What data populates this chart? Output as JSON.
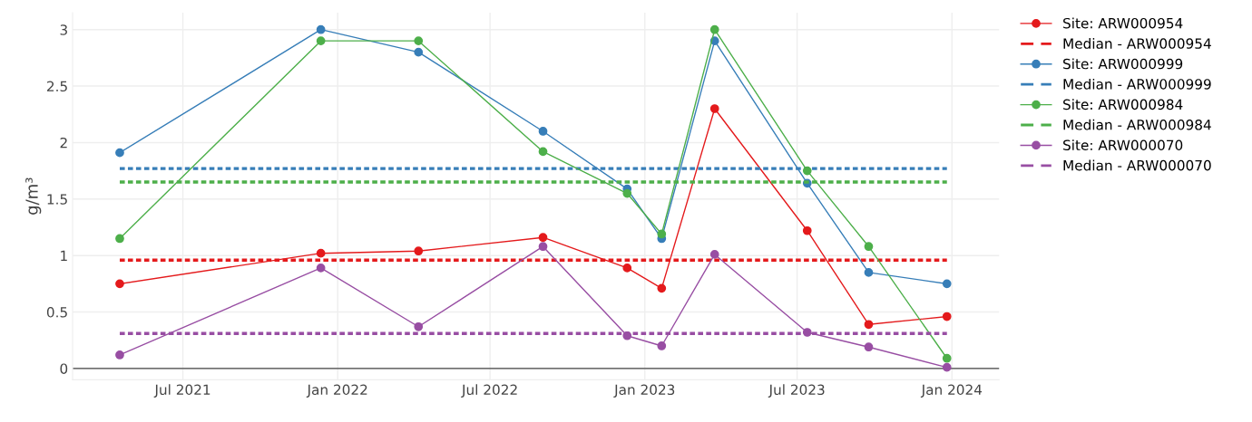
{
  "chart_data": {
    "type": "line",
    "ylabel": "g/m³",
    "marker": "circle",
    "line_style": "solid",
    "grid": true,
    "legend": "top right",
    "xlim": [
      "2021-02-20",
      "2024-02-26"
    ],
    "ylim": [
      -0.1,
      3.15
    ],
    "xticks": [
      {
        "value": "2021-07-01",
        "label": "Jul 2021"
      },
      {
        "value": "2022-01-01",
        "label": "Jan 2022"
      },
      {
        "value": "2022-07-01",
        "label": "Jul 2022"
      },
      {
        "value": "2023-01-01",
        "label": "Jan 2023"
      },
      {
        "value": "2023-07-01",
        "label": "Jul 2023"
      },
      {
        "value": "2024-01-01",
        "label": "Jan 2024"
      }
    ],
    "yticks": [
      0,
      0.5,
      1,
      1.5,
      2,
      2.5,
      3
    ],
    "ref_lines": [
      {
        "axis": "y",
        "value": 0,
        "label": null,
        "color": "#444444"
      }
    ],
    "x": [
      "2021-04-17",
      "2021-12-12",
      "2022-04-07",
      "2022-09-02",
      "2022-12-11",
      "2023-01-21",
      "2023-03-25",
      "2023-07-13",
      "2023-09-24",
      "2023-12-26"
    ],
    "series": [
      {
        "name": "Site: ARW000954",
        "color": "#e41a1c",
        "values": [
          0.75,
          1.02,
          1.04,
          1.16,
          0.89,
          0.71,
          2.3,
          1.22,
          0.39,
          0.46
        ]
      },
      {
        "name": "Median - ARW000954",
        "color": "#e41a1c",
        "line_style": "dashed",
        "marker": "none",
        "x": [
          "2021-04-17",
          "2023-12-26"
        ],
        "values": [
          0.96,
          0.96
        ]
      },
      {
        "name": "Site: ARW000999",
        "color": "#377eb8",
        "values": [
          1.91,
          3.0,
          2.8,
          2.1,
          1.59,
          1.15,
          2.9,
          1.64,
          0.85,
          0.75
        ]
      },
      {
        "name": "Median - ARW000999",
        "color": "#377eb8",
        "line_style": "dashed",
        "marker": "none",
        "x": [
          "2021-04-17",
          "2023-12-26"
        ],
        "values": [
          1.77,
          1.77
        ]
      },
      {
        "name": "Site: ARW000984",
        "color": "#4daf4a",
        "values": [
          1.15,
          2.9,
          2.9,
          1.92,
          1.55,
          1.19,
          3.0,
          1.75,
          1.08,
          0.09
        ]
      },
      {
        "name": "Median - ARW000984",
        "color": "#4daf4a",
        "line_style": "dashed",
        "marker": "none",
        "x": [
          "2021-04-17",
          "2023-12-26"
        ],
        "values": [
          1.65,
          1.65
        ]
      },
      {
        "name": "Site: ARW000070",
        "color": "#984ea3",
        "values": [
          0.12,
          0.89,
          0.37,
          1.08,
          0.29,
          0.2,
          1.01,
          0.32,
          0.19,
          0.01
        ]
      },
      {
        "name": "Median - ARW000070",
        "color": "#984ea3",
        "line_style": "dashed",
        "marker": "none",
        "x": [
          "2021-04-17",
          "2023-12-26"
        ],
        "values": [
          0.31,
          0.31
        ]
      }
    ]
  }
}
